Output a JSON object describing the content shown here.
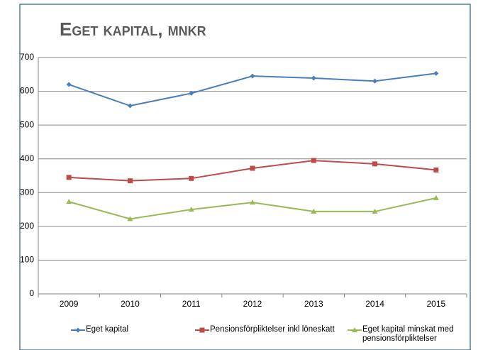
{
  "chart_data": {
    "type": "line",
    "title": "Eget kapital, mnkr",
    "categories": [
      "2009",
      "2010",
      "2011",
      "2012",
      "2013",
      "2014",
      "2015"
    ],
    "series": [
      {
        "name": "Eget kapital",
        "color": "#4a7ebb",
        "marker": "diamond",
        "values": [
          620,
          557,
          594,
          645,
          639,
          630,
          653
        ]
      },
      {
        "name": "Pensionsförpliktelser inkl löneskatt",
        "color": "#be4b48",
        "marker": "square",
        "values": [
          345,
          335,
          342,
          372,
          395,
          385,
          367
        ]
      },
      {
        "name": "Eget kapital minskat med pensionsförpliktelser",
        "color": "#98b954",
        "marker": "triangle",
        "values": [
          273,
          222,
          250,
          271,
          244,
          244,
          284
        ]
      }
    ],
    "ylim": [
      0,
      700
    ],
    "yticks": [
      0,
      100,
      200,
      300,
      400,
      500,
      600,
      700
    ],
    "grid": true,
    "legend": "bottom"
  }
}
